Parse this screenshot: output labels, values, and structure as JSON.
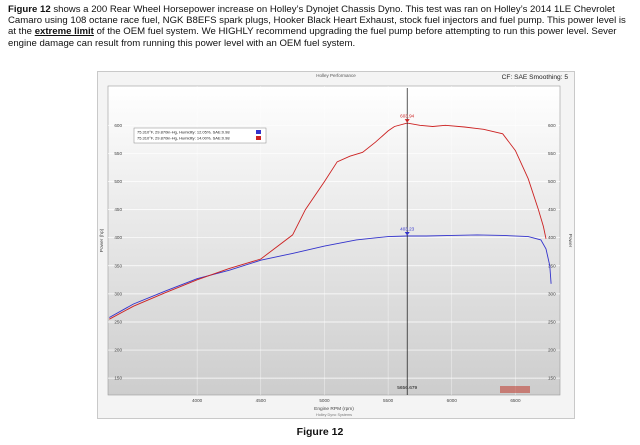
{
  "intro": {
    "figure_label": "Figure 12",
    "text_before_emphasis": "shows a 200 Rear Wheel Horsepower increase on Holley’s Dynojet Chassis Dyno. This test was ran on Holley’s 2014 1LE Chevrolet Camaro using 108 octane race fuel, NGK B8EFS spark plugs, Hooker Black Heart Exhaust, stock fuel injectors and fuel pump. This power level is at the",
    "emphasis": "extreme limit",
    "text_after_emphasis": "of the OEM fuel system. We HIGHLY recommend upgrading the fuel pump before attempting to run this power level. Sever engine damage can result from running this power level with an OEM fuel system."
  },
  "chart_header": {
    "title": "Holley Performance",
    "cf_note": "CF: SAE Smoothing: 5"
  },
  "chart_data": {
    "type": "line",
    "xlabel": "Engine RPM (rpm)",
    "xlabel_sub": "Holley Dyno Systems",
    "ylabel": "Power (hp)",
    "ylabel_right": "Power",
    "xlim": [
      3300,
      6850
    ],
    "ylim": [
      120,
      670
    ],
    "xticks": [
      4000,
      4500,
      5000,
      5500,
      6000,
      6500
    ],
    "yticks": [
      150,
      200,
      250,
      300,
      350,
      400,
      450,
      500,
      550,
      600
    ],
    "grid": true,
    "cursor": {
      "x": 5650,
      "label": "5656.679"
    },
    "legend_position": "top-left",
    "series": [
      {
        "name": "75.310°F, 29.870in-Hg, Humidity: 12.05%, SAE:0.98",
        "color": "#3333cc",
        "peak_label": "403.23",
        "x": [
          3310,
          3500,
          3750,
          4000,
          4250,
          4500,
          4750,
          5000,
          5250,
          5500,
          5650,
          5800,
          6000,
          6200,
          6400,
          6600,
          6700,
          6740,
          6770,
          6780
        ],
        "y": [
          258,
          282,
          305,
          327,
          342,
          360,
          372,
          385,
          396,
          402,
          403,
          403,
          404,
          405,
          404,
          402,
          396,
          380,
          350,
          318
        ]
      },
      {
        "name": "75.310°F, 29.870in-Hg, Humidity: 14.00%, SAE:0.98",
        "color": "#cc2222",
        "peak_label": "603.94",
        "x": [
          3310,
          3500,
          3750,
          4000,
          4250,
          4500,
          4750,
          4850,
          5000,
          5100,
          5200,
          5300,
          5400,
          5500,
          5550,
          5650,
          5750,
          5850,
          5950,
          6100,
          6250,
          6400,
          6500,
          6600,
          6680,
          6720,
          6740
        ],
        "y": [
          255,
          278,
          302,
          325,
          345,
          362,
          405,
          450,
          500,
          535,
          545,
          552,
          570,
          590,
          598,
          604,
          600,
          598,
          600,
          597,
          593,
          585,
          555,
          505,
          450,
          420,
          398
        ]
      }
    ]
  },
  "figure_caption": "Figure 12"
}
